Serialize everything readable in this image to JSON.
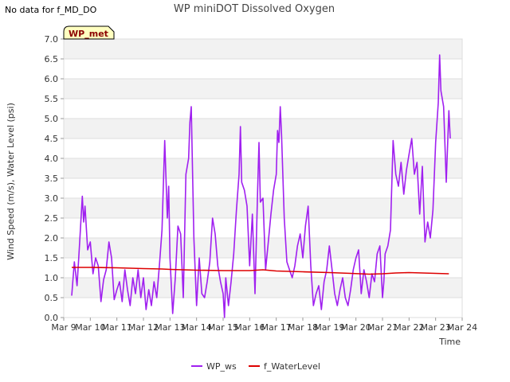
{
  "status": {
    "no_data": "No data for f_MD_DO"
  },
  "badge": {
    "label": "WP_met",
    "fill": "#ffffc0",
    "text_color": "#8b0000"
  },
  "chart_data": {
    "type": "line",
    "title": "WP miniDOT Dissolved Oxygen",
    "xlabel": "Time",
    "ylabel": "Wind Speed (m/s), Water Level (psi)",
    "ylim": [
      0,
      7.0
    ],
    "yticks": [
      0.0,
      0.5,
      1.0,
      1.5,
      2.0,
      2.5,
      3.0,
      3.5,
      4.0,
      4.5,
      5.0,
      5.5,
      6.0,
      6.5,
      7.0
    ],
    "xlim": [
      9,
      24
    ],
    "xticks": [
      {
        "x": 9,
        "label": "Mar 9"
      },
      {
        "x": 10,
        "label": "Mar 10"
      },
      {
        "x": 11,
        "label": "Mar 11"
      },
      {
        "x": 12,
        "label": "Mar 12"
      },
      {
        "x": 13,
        "label": "Mar 13"
      },
      {
        "x": 14,
        "label": "Mar 14"
      },
      {
        "x": 15,
        "label": "Mar 15"
      },
      {
        "x": 16,
        "label": "Mar 16"
      },
      {
        "x": 17,
        "label": "Mar 17"
      },
      {
        "x": 18,
        "label": "Mar 18"
      },
      {
        "x": 19,
        "label": "Mar 19"
      },
      {
        "x": 20,
        "label": "Mar 20"
      },
      {
        "x": 21,
        "label": "Mar 21"
      },
      {
        "x": 22,
        "label": "Mar 22"
      },
      {
        "x": 23,
        "label": "Mar 23"
      },
      {
        "x": 24,
        "label": "Mar 24"
      }
    ],
    "grid": true,
    "legend_position": "bottom-center",
    "series": [
      {
        "name": "WP_ws",
        "color": "#a020f0",
        "points": [
          [
            9.3,
            0.55
          ],
          [
            9.4,
            1.4
          ],
          [
            9.5,
            0.8
          ],
          [
            9.6,
            1.9
          ],
          [
            9.7,
            3.05
          ],
          [
            9.75,
            2.4
          ],
          [
            9.8,
            2.8
          ],
          [
            9.9,
            1.7
          ],
          [
            10.0,
            1.9
          ],
          [
            10.1,
            1.1
          ],
          [
            10.2,
            1.5
          ],
          [
            10.3,
            1.3
          ],
          [
            10.4,
            0.4
          ],
          [
            10.5,
            0.95
          ],
          [
            10.6,
            1.2
          ],
          [
            10.7,
            1.9
          ],
          [
            10.8,
            1.5
          ],
          [
            10.9,
            0.45
          ],
          [
            11.0,
            0.7
          ],
          [
            11.1,
            0.9
          ],
          [
            11.2,
            0.4
          ],
          [
            11.3,
            1.2
          ],
          [
            11.4,
            0.7
          ],
          [
            11.5,
            0.3
          ],
          [
            11.6,
            1.0
          ],
          [
            11.7,
            0.6
          ],
          [
            11.8,
            1.2
          ],
          [
            11.9,
            0.5
          ],
          [
            12.0,
            1.0
          ],
          [
            12.1,
            0.2
          ],
          [
            12.2,
            0.7
          ],
          [
            12.3,
            0.3
          ],
          [
            12.4,
            0.9
          ],
          [
            12.5,
            0.5
          ],
          [
            12.6,
            1.3
          ],
          [
            12.7,
            2.2
          ],
          [
            12.8,
            4.45
          ],
          [
            12.9,
            2.5
          ],
          [
            12.95,
            3.3
          ],
          [
            13.0,
            1.5
          ],
          [
            13.1,
            0.1
          ],
          [
            13.2,
            1.0
          ],
          [
            13.3,
            2.3
          ],
          [
            13.4,
            2.1
          ],
          [
            13.5,
            0.5
          ],
          [
            13.6,
            3.6
          ],
          [
            13.7,
            4.0
          ],
          [
            13.75,
            4.9
          ],
          [
            13.8,
            5.3
          ],
          [
            13.9,
            2.0
          ],
          [
            14.0,
            0.3
          ],
          [
            14.1,
            1.5
          ],
          [
            14.2,
            0.6
          ],
          [
            14.3,
            0.5
          ],
          [
            14.4,
            0.9
          ],
          [
            14.5,
            1.4
          ],
          [
            14.6,
            2.5
          ],
          [
            14.7,
            2.1
          ],
          [
            14.8,
            1.3
          ],
          [
            14.9,
            0.9
          ],
          [
            15.0,
            0.6
          ],
          [
            15.05,
            0.0
          ],
          [
            15.1,
            1.0
          ],
          [
            15.2,
            0.3
          ],
          [
            15.3,
            0.9
          ],
          [
            15.4,
            1.6
          ],
          [
            15.5,
            2.7
          ],
          [
            15.6,
            3.6
          ],
          [
            15.65,
            4.8
          ],
          [
            15.7,
            3.4
          ],
          [
            15.8,
            3.2
          ],
          [
            15.9,
            2.8
          ],
          [
            16.0,
            1.3
          ],
          [
            16.1,
            2.6
          ],
          [
            16.2,
            0.6
          ],
          [
            16.3,
            3.2
          ],
          [
            16.35,
            4.4
          ],
          [
            16.4,
            2.9
          ],
          [
            16.5,
            3.0
          ],
          [
            16.6,
            1.2
          ],
          [
            16.7,
            1.9
          ],
          [
            16.8,
            2.6
          ],
          [
            16.9,
            3.2
          ],
          [
            17.0,
            3.6
          ],
          [
            17.05,
            4.7
          ],
          [
            17.1,
            4.4
          ],
          [
            17.15,
            5.3
          ],
          [
            17.2,
            4.6
          ],
          [
            17.3,
            2.5
          ],
          [
            17.4,
            1.4
          ],
          [
            17.5,
            1.2
          ],
          [
            17.6,
            1.0
          ],
          [
            17.7,
            1.3
          ],
          [
            17.8,
            1.8
          ],
          [
            17.9,
            2.1
          ],
          [
            18.0,
            1.5
          ],
          [
            18.1,
            2.3
          ],
          [
            18.2,
            2.8
          ],
          [
            18.3,
            1.3
          ],
          [
            18.4,
            0.3
          ],
          [
            18.5,
            0.6
          ],
          [
            18.6,
            0.8
          ],
          [
            18.7,
            0.2
          ],
          [
            18.8,
            0.9
          ],
          [
            18.9,
            1.2
          ],
          [
            19.0,
            1.8
          ],
          [
            19.1,
            1.2
          ],
          [
            19.2,
            0.6
          ],
          [
            19.3,
            0.3
          ],
          [
            19.4,
            0.7
          ],
          [
            19.5,
            1.0
          ],
          [
            19.6,
            0.5
          ],
          [
            19.7,
            0.3
          ],
          [
            19.8,
            0.7
          ],
          [
            19.9,
            1.2
          ],
          [
            20.0,
            1.5
          ],
          [
            20.1,
            1.7
          ],
          [
            20.2,
            0.6
          ],
          [
            20.3,
            1.2
          ],
          [
            20.4,
            0.9
          ],
          [
            20.5,
            0.5
          ],
          [
            20.6,
            1.1
          ],
          [
            20.7,
            0.9
          ],
          [
            20.8,
            1.6
          ],
          [
            20.9,
            1.8
          ],
          [
            21.0,
            0.5
          ],
          [
            21.05,
            0.9
          ],
          [
            21.1,
            1.6
          ],
          [
            21.2,
            1.8
          ],
          [
            21.3,
            2.2
          ],
          [
            21.4,
            4.45
          ],
          [
            21.5,
            3.6
          ],
          [
            21.6,
            3.3
          ],
          [
            21.7,
            3.9
          ],
          [
            21.8,
            3.1
          ],
          [
            21.9,
            3.7
          ],
          [
            22.0,
            4.1
          ],
          [
            22.1,
            4.5
          ],
          [
            22.2,
            3.6
          ],
          [
            22.3,
            3.9
          ],
          [
            22.4,
            2.6
          ],
          [
            22.5,
            3.8
          ],
          [
            22.6,
            1.9
          ],
          [
            22.7,
            2.4
          ],
          [
            22.8,
            2.0
          ],
          [
            22.9,
            2.7
          ],
          [
            23.0,
            4.4
          ],
          [
            23.1,
            5.4
          ],
          [
            23.15,
            6.6
          ],
          [
            23.2,
            5.7
          ],
          [
            23.3,
            5.3
          ],
          [
            23.4,
            3.4
          ],
          [
            23.5,
            5.2
          ],
          [
            23.55,
            4.5
          ]
        ]
      },
      {
        "name": "f_WaterLevel",
        "color": "#dd0000",
        "points": [
          [
            9.3,
            1.26
          ],
          [
            10.0,
            1.26
          ],
          [
            11.0,
            1.25
          ],
          [
            12.0,
            1.23
          ],
          [
            12.7,
            1.22
          ],
          [
            13.0,
            1.21
          ],
          [
            14.0,
            1.19
          ],
          [
            15.0,
            1.18
          ],
          [
            16.0,
            1.18
          ],
          [
            16.5,
            1.2
          ],
          [
            17.0,
            1.17
          ],
          [
            18.0,
            1.15
          ],
          [
            19.0,
            1.13
          ],
          [
            19.8,
            1.11
          ],
          [
            20.5,
            1.09
          ],
          [
            21.0,
            1.1
          ],
          [
            21.5,
            1.12
          ],
          [
            22.0,
            1.13
          ],
          [
            22.5,
            1.12
          ],
          [
            23.0,
            1.11
          ],
          [
            23.5,
            1.1
          ]
        ]
      }
    ]
  }
}
